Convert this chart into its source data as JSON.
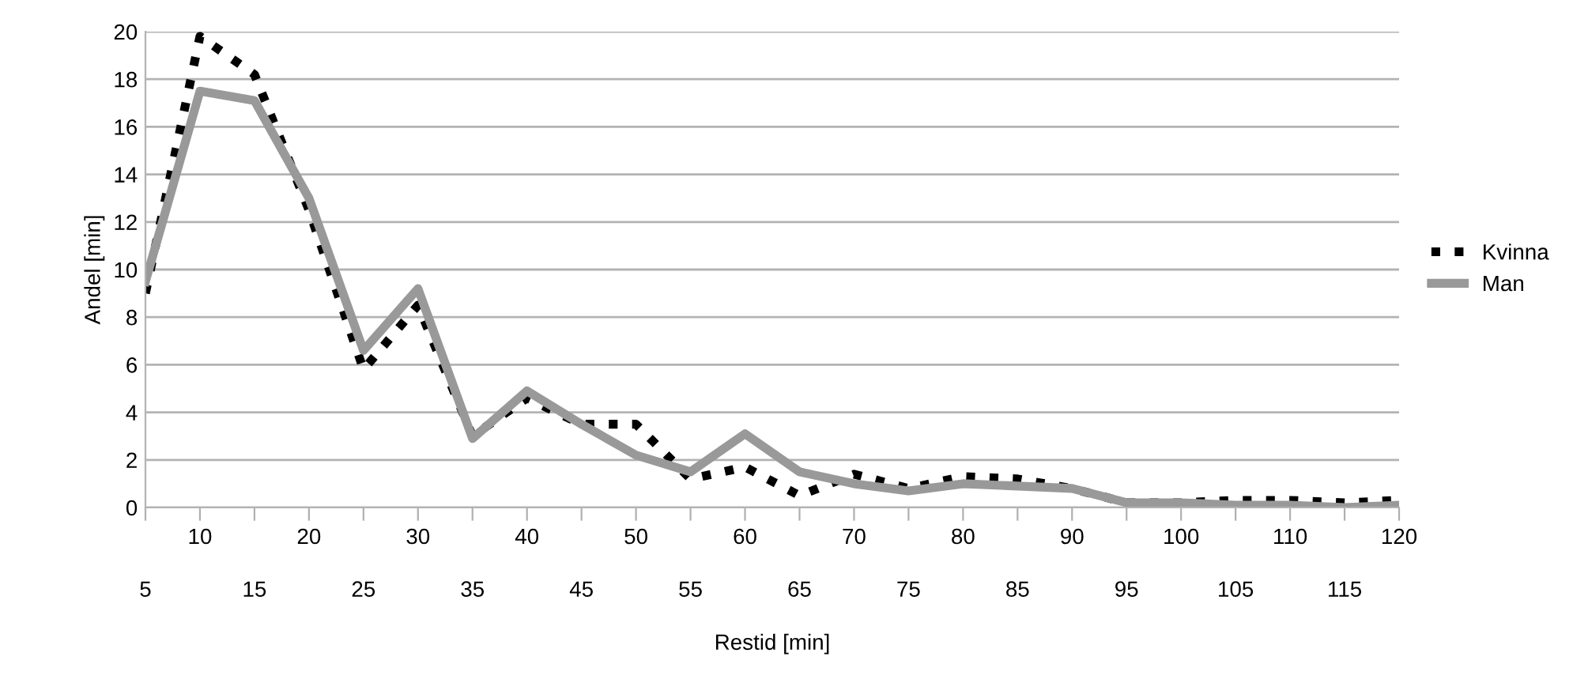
{
  "chart_data": {
    "type": "line",
    "xlabel": "Restid [min]",
    "ylabel": "Andel [min]",
    "categories": [
      "5",
      "10",
      "15",
      "20",
      "25",
      "30",
      "35",
      "40",
      "45",
      "50",
      "55",
      "60",
      "65",
      "70",
      "75",
      "80",
      "85",
      "90",
      "95",
      "100",
      "105",
      "110",
      "115",
      "120"
    ],
    "series": [
      {
        "name": "Kvinna",
        "color": "#000000",
        "line_style": "dotted",
        "values": [
          9.0,
          19.8,
          18.2,
          12.5,
          5.8,
          8.5,
          3.0,
          4.6,
          3.5,
          3.5,
          1.2,
          1.7,
          0.5,
          1.4,
          0.8,
          1.3,
          1.2,
          0.8,
          0.2,
          0.2,
          0.3,
          0.3,
          0.2,
          0.3
        ]
      },
      {
        "name": "Man",
        "color": "#999999",
        "line_style": "solid",
        "values": [
          9.5,
          17.5,
          17.1,
          13.0,
          6.6,
          9.2,
          2.9,
          4.9,
          3.5,
          2.2,
          1.5,
          3.1,
          1.5,
          1.0,
          0.7,
          1.0,
          0.9,
          0.8,
          0.2,
          0.2,
          0.1,
          0.1,
          0.0,
          0.1
        ]
      }
    ],
    "ylim": [
      0,
      20
    ],
    "yticks": [
      0,
      2,
      4,
      6,
      8,
      10,
      12,
      14,
      16,
      18,
      20
    ],
    "grid": "y",
    "legend": "right"
  }
}
